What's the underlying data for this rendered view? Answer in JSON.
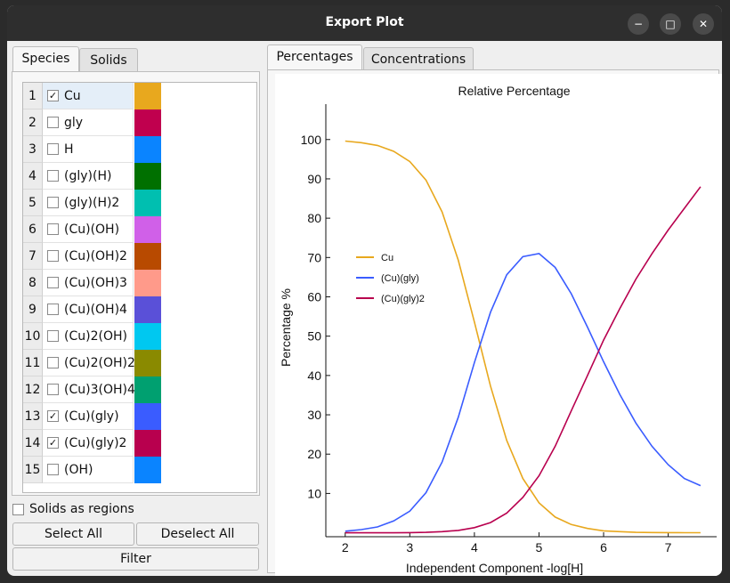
{
  "window": {
    "title": "Export Plot",
    "minimize": "−",
    "maximize": "□",
    "close": "✕"
  },
  "left_tabs": [
    {
      "label": "Species"
    },
    {
      "label": "Solids"
    }
  ],
  "species": [
    {
      "num": "1",
      "name": "Cu",
      "checked": true,
      "color": "#E8A81E"
    },
    {
      "num": "2",
      "name": "gly",
      "checked": false,
      "color": "#C0004E"
    },
    {
      "num": "3",
      "name": "H",
      "checked": false,
      "color": "#0A84FF"
    },
    {
      "num": "4",
      "name": "(gly)(H)",
      "checked": false,
      "color": "#007000"
    },
    {
      "num": "5",
      "name": "(gly)(H)2",
      "checked": false,
      "color": "#00BFB0"
    },
    {
      "num": "6",
      "name": "(Cu)(OH)",
      "checked": false,
      "color": "#D060E8"
    },
    {
      "num": "7",
      "name": "(Cu)(OH)2",
      "checked": false,
      "color": "#B84A00"
    },
    {
      "num": "8",
      "name": "(Cu)(OH)3",
      "checked": false,
      "color": "#FF9A8A"
    },
    {
      "num": "9",
      "name": "(Cu)(OH)4",
      "checked": false,
      "color": "#5A50D8"
    },
    {
      "num": "10",
      "name": "(Cu)2(OH)",
      "checked": false,
      "color": "#00C8F0"
    },
    {
      "num": "11",
      "name": "(Cu)2(OH)2",
      "checked": false,
      "color": "#8A8A00"
    },
    {
      "num": "12",
      "name": "(Cu)3(OH)4",
      "checked": false,
      "color": "#00A070"
    },
    {
      "num": "13",
      "name": "(Cu)(gly)",
      "checked": true,
      "color": "#3A5CFF"
    },
    {
      "num": "14",
      "name": "(Cu)(gly)2",
      "checked": true,
      "color": "#B8004E"
    },
    {
      "num": "15",
      "name": "(OH)",
      "checked": false,
      "color": "#0A84FF"
    }
  ],
  "controls": {
    "solids_as_regions": "Solids as regions",
    "select_all": "Select All",
    "deselect_all": "Deselect All",
    "filter": "Filter"
  },
  "right_tabs": [
    {
      "label": "Percentages"
    },
    {
      "label": "Concentrations"
    }
  ],
  "chart_data": {
    "type": "line",
    "title": "Relative Percentage",
    "xlabel": "Independent Component -log[H]",
    "ylabel": "Percentage %",
    "xlim": [
      1.7,
      7.75
    ],
    "ylim": [
      -1,
      109
    ],
    "xticks": [
      2,
      3,
      4,
      5,
      6,
      7
    ],
    "yticks": [
      10,
      20,
      30,
      40,
      50,
      60,
      70,
      80,
      90,
      100
    ],
    "legend_position": "left",
    "grid": false,
    "series": [
      {
        "name": "Cu",
        "color": "#E8A81E",
        "x": [
          2.0,
          2.25,
          2.5,
          2.75,
          3.0,
          3.25,
          3.5,
          3.75,
          4.0,
          4.25,
          4.5,
          4.75,
          5.0,
          5.25,
          5.5,
          5.75,
          6.0,
          6.25,
          6.5,
          6.75,
          7.0,
          7.25,
          7.5
        ],
        "y": [
          99.6,
          99.2,
          98.5,
          97.0,
          94.4,
          89.7,
          81.6,
          69.3,
          53.6,
          37.3,
          23.5,
          13.8,
          7.6,
          4.0,
          2.1,
          1.1,
          0.5,
          0.3,
          0.1,
          0.07,
          0.03,
          0.02,
          0.01
        ]
      },
      {
        "name": "(Cu)(gly)",
        "color": "#3A5CFF",
        "x": [
          2.0,
          2.25,
          2.5,
          2.75,
          3.0,
          3.25,
          3.5,
          3.75,
          4.0,
          4.25,
          4.5,
          4.75,
          5.0,
          5.25,
          5.5,
          5.75,
          6.0,
          6.25,
          6.5,
          6.75,
          7.0,
          7.25,
          7.5
        ],
        "y": [
          0.4,
          0.8,
          1.5,
          3.0,
          5.5,
          10.2,
          18.0,
          29.4,
          43.3,
          56.1,
          65.6,
          70.2,
          71.0,
          67.5,
          60.8,
          52.3,
          43.5,
          35.2,
          27.9,
          22.0,
          17.3,
          13.8,
          12.0
        ]
      },
      {
        "name": "(Cu)(gly)2",
        "color": "#B8004E",
        "x": [
          2.0,
          2.25,
          2.5,
          2.75,
          3.0,
          3.25,
          3.5,
          3.75,
          4.0,
          4.25,
          4.5,
          4.75,
          5.0,
          5.25,
          5.5,
          5.75,
          6.0,
          6.25,
          6.5,
          6.75,
          7.0,
          7.25,
          7.5
        ],
        "y": [
          0,
          0,
          0,
          0,
          0.05,
          0.1,
          0.3,
          0.6,
          1.3,
          2.6,
          5.0,
          9.0,
          14.5,
          22.0,
          31.0,
          40.0,
          49.0,
          57.0,
          64.5,
          71.0,
          77.0,
          82.5,
          88.0
        ]
      }
    ]
  }
}
